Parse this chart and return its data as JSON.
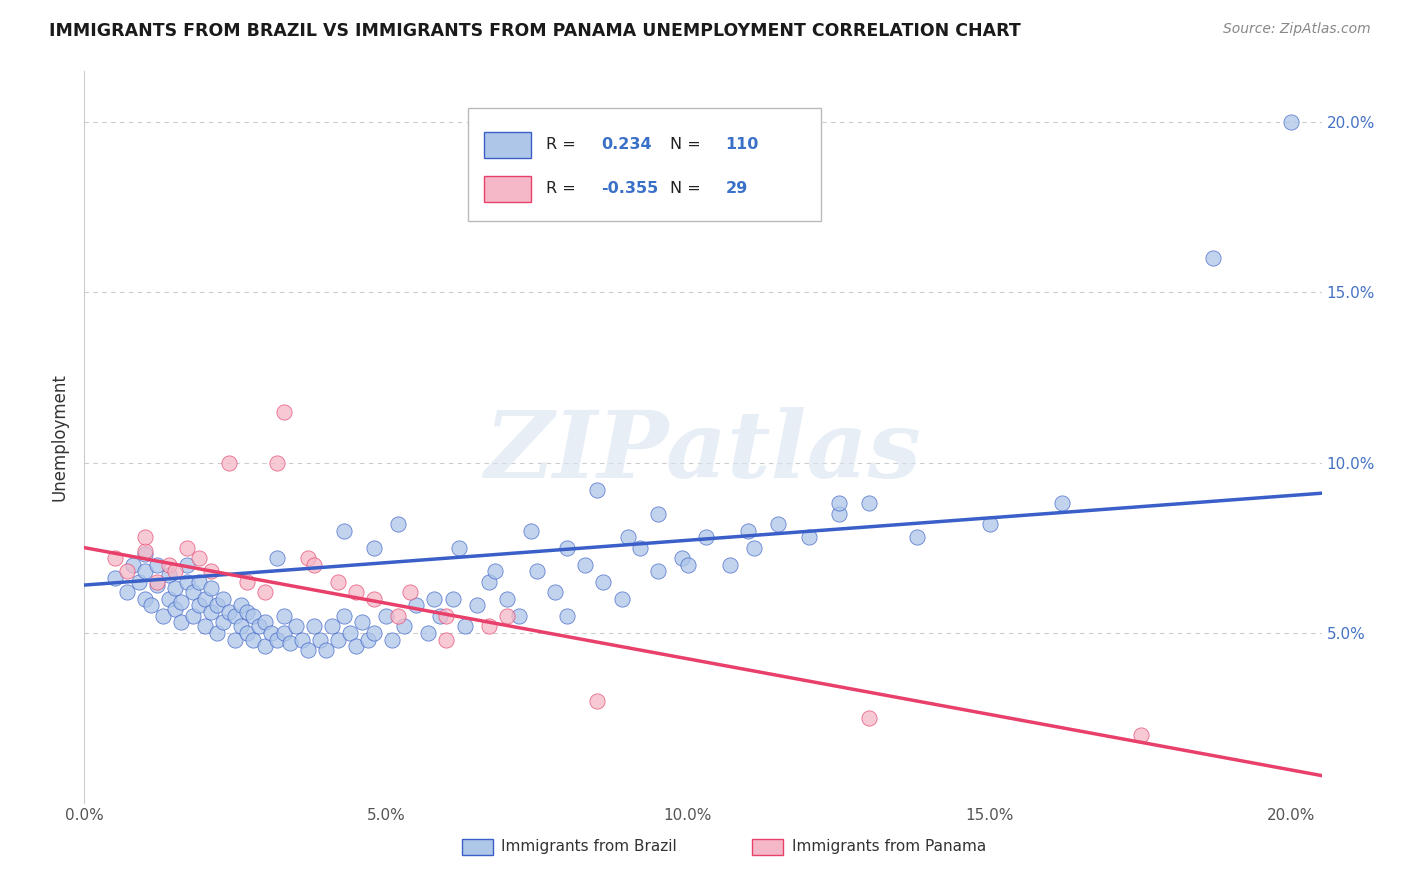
{
  "title": "IMMIGRANTS FROM BRAZIL VS IMMIGRANTS FROM PANAMA UNEMPLOYMENT CORRELATION CHART",
  "source": "Source: ZipAtlas.com",
  "ylabel": "Unemployment",
  "brazil_R": 0.234,
  "brazil_N": 110,
  "panama_R": -0.355,
  "panama_N": 29,
  "brazil_color": "#aec6e8",
  "panama_color": "#f4b8c8",
  "brazil_line_color": "#3a5fc8",
  "panama_line_color": "#e8406a",
  "watermark_text": "ZIPatlas",
  "xlim": [
    0.0,
    0.205
  ],
  "ylim": [
    0.0,
    0.215
  ],
  "yticks": [
    0.05,
    0.1,
    0.15,
    0.2
  ],
  "ytick_labels": [
    "5.0%",
    "10.0%",
    "15.0%",
    "20.0%"
  ],
  "xticks": [
    0.0,
    0.05,
    0.1,
    0.15,
    0.2
  ],
  "xtick_labels": [
    "0.0%",
    "5.0%",
    "10.0%",
    "15.0%",
    "20.0%"
  ],
  "brazil_line_x0": 0.0,
  "brazil_line_y0": 0.064,
  "brazil_line_x1": 0.205,
  "brazil_line_y1": 0.091,
  "panama_line_x0": 0.0,
  "panama_line_y0": 0.075,
  "panama_line_x1": 0.205,
  "panama_line_y1": 0.008,
  "brazil_scatter_x": [
    0.005,
    0.007,
    0.008,
    0.009,
    0.01,
    0.01,
    0.01,
    0.011,
    0.012,
    0.012,
    0.013,
    0.014,
    0.014,
    0.015,
    0.015,
    0.016,
    0.016,
    0.017,
    0.017,
    0.018,
    0.018,
    0.019,
    0.019,
    0.02,
    0.02,
    0.021,
    0.021,
    0.022,
    0.022,
    0.023,
    0.023,
    0.024,
    0.025,
    0.025,
    0.026,
    0.026,
    0.027,
    0.027,
    0.028,
    0.028,
    0.029,
    0.03,
    0.03,
    0.031,
    0.032,
    0.033,
    0.033,
    0.034,
    0.035,
    0.036,
    0.037,
    0.038,
    0.039,
    0.04,
    0.041,
    0.042,
    0.043,
    0.044,
    0.045,
    0.046,
    0.047,
    0.048,
    0.05,
    0.051,
    0.053,
    0.055,
    0.057,
    0.059,
    0.061,
    0.063,
    0.065,
    0.067,
    0.07,
    0.072,
    0.075,
    0.078,
    0.08,
    0.083,
    0.086,
    0.089,
    0.092,
    0.095,
    0.099,
    0.103,
    0.107,
    0.111,
    0.115,
    0.12,
    0.125,
    0.13,
    0.032,
    0.043,
    0.048,
    0.052,
    0.058,
    0.062,
    0.068,
    0.074,
    0.08,
    0.085,
    0.09,
    0.095,
    0.1,
    0.11,
    0.125,
    0.138,
    0.15,
    0.162,
    0.187,
    0.2
  ],
  "brazil_scatter_y": [
    0.066,
    0.062,
    0.07,
    0.065,
    0.06,
    0.068,
    0.073,
    0.058,
    0.064,
    0.07,
    0.055,
    0.06,
    0.067,
    0.057,
    0.063,
    0.053,
    0.059,
    0.065,
    0.07,
    0.055,
    0.062,
    0.058,
    0.065,
    0.052,
    0.06,
    0.056,
    0.063,
    0.05,
    0.058,
    0.053,
    0.06,
    0.056,
    0.048,
    0.055,
    0.052,
    0.058,
    0.05,
    0.056,
    0.048,
    0.055,
    0.052,
    0.046,
    0.053,
    0.05,
    0.048,
    0.055,
    0.05,
    0.047,
    0.052,
    0.048,
    0.045,
    0.052,
    0.048,
    0.045,
    0.052,
    0.048,
    0.055,
    0.05,
    0.046,
    0.053,
    0.048,
    0.05,
    0.055,
    0.048,
    0.052,
    0.058,
    0.05,
    0.055,
    0.06,
    0.052,
    0.058,
    0.065,
    0.06,
    0.055,
    0.068,
    0.062,
    0.055,
    0.07,
    0.065,
    0.06,
    0.075,
    0.068,
    0.072,
    0.078,
    0.07,
    0.075,
    0.082,
    0.078,
    0.085,
    0.088,
    0.072,
    0.08,
    0.075,
    0.082,
    0.06,
    0.075,
    0.068,
    0.08,
    0.075,
    0.092,
    0.078,
    0.085,
    0.07,
    0.08,
    0.088,
    0.078,
    0.082,
    0.088,
    0.16,
    0.2
  ],
  "panama_scatter_x": [
    0.005,
    0.007,
    0.01,
    0.01,
    0.012,
    0.014,
    0.015,
    0.017,
    0.019,
    0.021,
    0.024,
    0.027,
    0.03,
    0.033,
    0.037,
    0.042,
    0.048,
    0.054,
    0.06,
    0.067,
    0.032,
    0.038,
    0.045,
    0.052,
    0.06,
    0.07,
    0.085,
    0.13,
    0.175
  ],
  "panama_scatter_y": [
    0.072,
    0.068,
    0.074,
    0.078,
    0.065,
    0.07,
    0.068,
    0.075,
    0.072,
    0.068,
    0.1,
    0.065,
    0.062,
    0.115,
    0.072,
    0.065,
    0.06,
    0.062,
    0.055,
    0.052,
    0.1,
    0.07,
    0.062,
    0.055,
    0.048,
    0.055,
    0.03,
    0.025,
    0.02
  ]
}
